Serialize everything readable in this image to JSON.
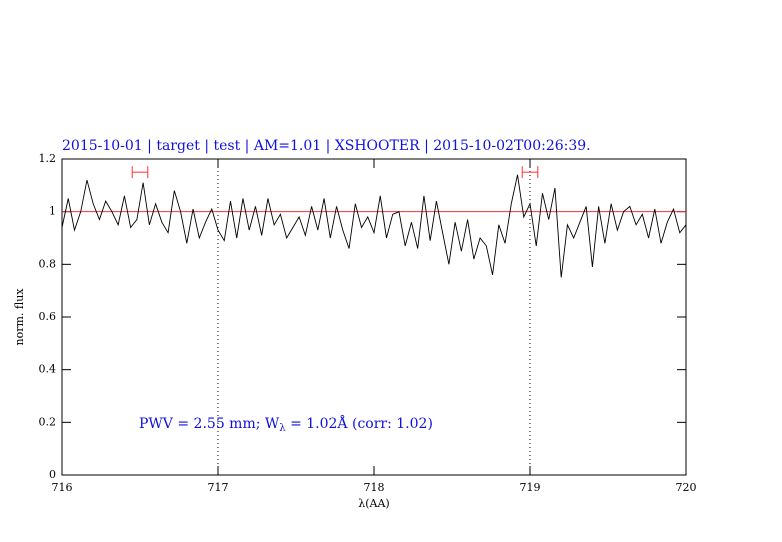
{
  "chart_data": {
    "type": "line",
    "title": "2015-10-01 | target | test | AM=1.01 | XSHOOTER | 2015-10-02T00:26:39.",
    "xlabel": "λ(AA)",
    "ylabel": "norm. flux",
    "annotation": [
      "PWV = 2.55 mm; W",
      "λ",
      " = 1.02Å (corr: 1.02)"
    ],
    "xlim": [
      716,
      720
    ],
    "ylim": [
      0,
      1.2
    ],
    "xticks": [
      716,
      717,
      718,
      719,
      720
    ],
    "yticks": [
      0,
      0.2,
      0.4,
      0.6,
      0.8,
      1,
      1.2
    ],
    "reference_line": {
      "value": 1,
      "color": "#ff3030"
    },
    "vertical_markers": [
      717,
      719
    ],
    "error_markers": [
      {
        "x": 716.5,
        "xerr": 0.05,
        "y": 1.15,
        "color": "#ff3030"
      },
      {
        "x": 719.0,
        "xerr": 0.05,
        "y": 1.15,
        "color": "#ff3030"
      }
    ],
    "series": [
      {
        "color": "#000000",
        "x": [
          716.0,
          716.04,
          716.08,
          716.12,
          716.16,
          716.2,
          716.24,
          716.28,
          716.32,
          716.36,
          716.4,
          716.44,
          716.48,
          716.52,
          716.56,
          716.6,
          716.64,
          716.68,
          716.72,
          716.76,
          716.8,
          716.84,
          716.88,
          716.92,
          716.96,
          717.0,
          717.04,
          717.08,
          717.12,
          717.16,
          717.2,
          717.24,
          717.28,
          717.32,
          717.36,
          717.4,
          717.44,
          717.48,
          717.52,
          717.56,
          717.6,
          717.64,
          717.68,
          717.72,
          717.76,
          717.8,
          717.84,
          717.88,
          717.92,
          717.96,
          718.0,
          718.04,
          718.08,
          718.12,
          718.16,
          718.2,
          718.24,
          718.28,
          718.32,
          718.36,
          718.4,
          718.44,
          718.48,
          718.52,
          718.56,
          718.6,
          718.64,
          718.68,
          718.72,
          718.76,
          718.8,
          718.84,
          718.88,
          718.92,
          718.96,
          719.0,
          719.04,
          719.08,
          719.12,
          719.16,
          719.2,
          719.24,
          719.28,
          719.32,
          719.36,
          719.4,
          719.44,
          719.48,
          719.52,
          719.56,
          719.6,
          719.64,
          719.68,
          719.72,
          719.76,
          719.8,
          719.84,
          719.88,
          719.92,
          719.96,
          720.0
        ],
        "values": [
          0.94,
          1.05,
          0.93,
          1.0,
          1.12,
          1.03,
          0.97,
          1.04,
          1.0,
          0.95,
          1.06,
          0.94,
          0.97,
          1.11,
          0.95,
          1.03,
          0.96,
          0.92,
          1.08,
          1.0,
          0.88,
          1.01,
          0.9,
          0.96,
          1.01,
          0.93,
          0.89,
          1.04,
          0.9,
          1.05,
          0.93,
          1.02,
          0.91,
          1.05,
          0.95,
          0.99,
          0.9,
          0.94,
          0.98,
          0.91,
          1.02,
          0.93,
          1.05,
          0.9,
          1.02,
          0.93,
          0.86,
          1.03,
          0.94,
          0.98,
          0.92,
          1.06,
          0.9,
          0.99,
          1.0,
          0.87,
          0.96,
          0.86,
          1.06,
          0.89,
          1.04,
          0.92,
          0.8,
          0.96,
          0.85,
          0.97,
          0.82,
          0.9,
          0.87,
          0.76,
          0.95,
          0.88,
          1.03,
          1.14,
          0.98,
          1.03,
          0.87,
          1.07,
          0.97,
          1.09,
          0.75,
          0.95,
          0.9,
          0.96,
          1.02,
          0.79,
          1.02,
          0.88,
          1.03,
          0.93,
          1.0,
          1.02,
          0.95,
          0.99,
          0.9,
          1.01,
          0.88,
          0.96,
          1.01,
          0.92,
          0.95
        ]
      }
    ]
  }
}
